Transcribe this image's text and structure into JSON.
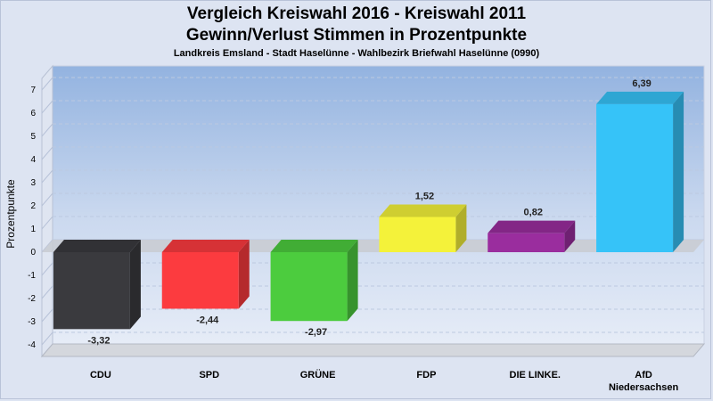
{
  "chart_data": {
    "type": "bar",
    "title": "Vergleich Kreiswahl 2016 - Kreiswahl 2011",
    "title_line2": "Gewinn/Verlust Stimmen in Prozentpunkte",
    "subtitle": "Landkreis Emsland - Stadt Haselünne - Wahlbezirk Briefwahl Haselünne (0990)",
    "xlabel": "",
    "ylabel": "Prozentpunkte",
    "ylim": [
      -4.5,
      7.5
    ],
    "yticks": [
      -4,
      -3,
      -2,
      -1,
      0,
      1,
      2,
      3,
      4,
      5,
      6,
      7
    ],
    "grid": true,
    "categories": [
      "CDU",
      "SPD",
      "GRÜNE",
      "FDP",
      "DIE LINKE.",
      "AfD Niedersachsen"
    ],
    "category_labels": [
      [
        "CDU"
      ],
      [
        "SPD"
      ],
      [
        "GRÜNE"
      ],
      [
        "FDP"
      ],
      [
        "DIE LINKE."
      ],
      [
        "AfD",
        "Niedersachsen"
      ]
    ],
    "values": [
      -3.32,
      -2.44,
      -2.97,
      1.52,
      0.82,
      6.39
    ],
    "value_labels": [
      "-3,32",
      "-2,44",
      "-2,97",
      "1,52",
      "0,82",
      "6,39"
    ],
    "colors": [
      "#3a3a3e",
      "#fc3b3f",
      "#4ccc3e",
      "#f4f23a",
      "#9a2d9e",
      "#36c3f8"
    ]
  }
}
